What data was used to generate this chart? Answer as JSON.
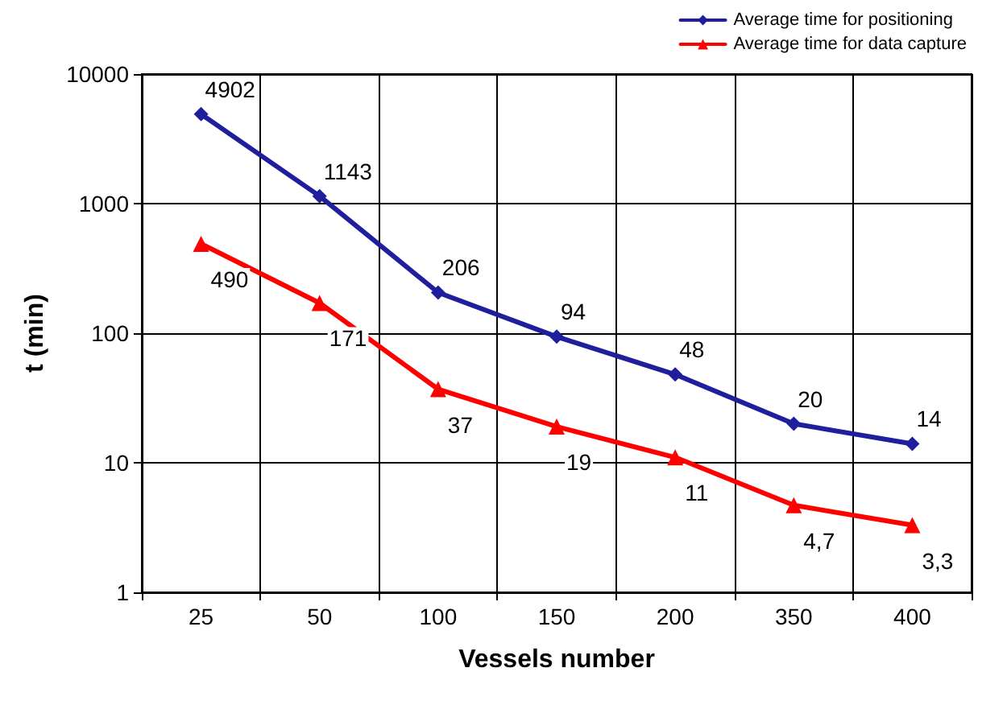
{
  "chart_data": {
    "type": "line",
    "xlabel": "Vessels number",
    "ylabel": "t (min)",
    "categories": [
      "25",
      "50",
      "100",
      "150",
      "200",
      "350",
      "400"
    ],
    "series": [
      {
        "name": "Average time for positioning",
        "color": "#1f1f9e",
        "marker": "diamond",
        "values": [
          4902,
          1143,
          206,
          94,
          48,
          20,
          14
        ],
        "value_labels": [
          "4902",
          "1143",
          "206",
          "94",
          "48",
          "20",
          "14"
        ]
      },
      {
        "name": "Average time for data capture",
        "color": "#ff0000",
        "marker": "triangle",
        "values": [
          490,
          171,
          37,
          19,
          11,
          4.7,
          3.3
        ],
        "value_labels": [
          "490",
          "171",
          "37",
          "19",
          "11",
          "4,7",
          "3,3"
        ]
      }
    ],
    "log": "y",
    "ylim": [
      1,
      10000
    ],
    "yticks": [
      1,
      10,
      100,
      1000,
      10000
    ],
    "grid": true,
    "legend": "top right"
  }
}
